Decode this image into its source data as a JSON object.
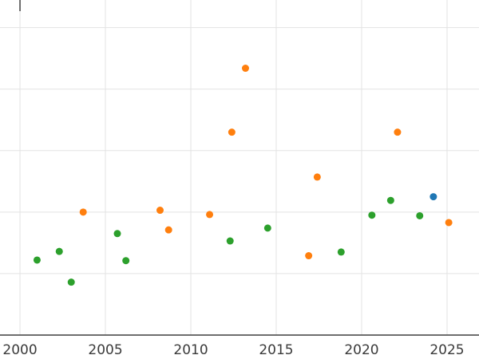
{
  "chart_data": {
    "type": "scatter",
    "title": "",
    "xlabel": "",
    "ylabel": "",
    "grid": true,
    "legend": "none",
    "xlim": [
      1998.83,
      2026.87
    ],
    "ylim": [
      -0.39,
      5.45
    ],
    "x_tick_labels": [
      "2000",
      "2005",
      "2010",
      "2015",
      "2020",
      "2025"
    ],
    "x_tick_values": [
      2000,
      2005,
      2010,
      2015,
      2020,
      2025
    ],
    "y_gridline_values": [
      1,
      2,
      3,
      4,
      5
    ],
    "axis_baseline_value": 0,
    "series": [
      {
        "name": "green-series",
        "color": "#2ca02c",
        "points": [
          [
            2001.0,
            1.22
          ],
          [
            2002.3,
            1.36
          ],
          [
            2003.0,
            0.86
          ],
          [
            2005.7,
            1.65
          ],
          [
            2006.2,
            1.21
          ],
          [
            2012.3,
            1.53
          ],
          [
            2014.5,
            1.74
          ],
          [
            2018.8,
            1.35
          ],
          [
            2020.6,
            1.95
          ],
          [
            2021.7,
            2.19
          ],
          [
            2023.4,
            1.94
          ]
        ]
      },
      {
        "name": "orange-series",
        "color": "#ff7f0e",
        "points": [
          [
            2003.7,
            2.0
          ],
          [
            2008.2,
            2.03
          ],
          [
            2008.7,
            1.71
          ],
          [
            2011.1,
            1.96
          ],
          [
            2012.4,
            3.3
          ],
          [
            2013.2,
            4.34
          ],
          [
            2016.9,
            1.29
          ],
          [
            2017.4,
            2.57
          ],
          [
            2022.1,
            3.3
          ],
          [
            2025.1,
            1.83
          ]
        ]
      },
      {
        "name": "blue-series",
        "color": "#1f77b4",
        "points": [
          [
            2024.2,
            2.25
          ]
        ]
      }
    ],
    "style": {
      "background_color": "#ffffff",
      "gridline_color": "#e3e3e3",
      "axis_color": "#3f3f3f",
      "tick_label_color": "#3a3a3a",
      "marker_radius": 4.5
    }
  }
}
